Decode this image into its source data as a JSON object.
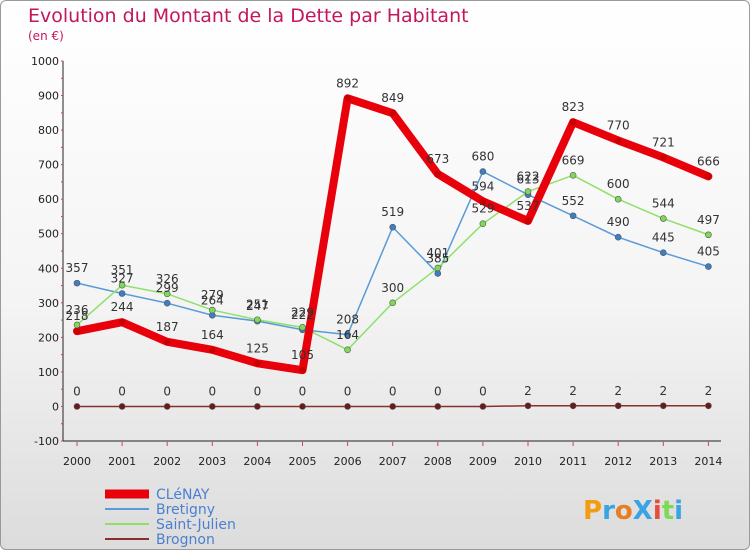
{
  "chart_data": {
    "type": "line",
    "title": "Evolution du Montant de la Dette par Habitant",
    "subtitle": "(en €)",
    "x": [
      "2000",
      "2001",
      "2002",
      "2003",
      "2004",
      "2005",
      "2006",
      "2007",
      "2008",
      "2009",
      "2010",
      "2011",
      "2012",
      "2013",
      "2014"
    ],
    "ylim": [
      -100,
      1000
    ],
    "yticks": [
      -100,
      0,
      100,
      200,
      300,
      400,
      500,
      600,
      700,
      800,
      900,
      1000
    ],
    "grid": false,
    "legend_position": "bottom-left",
    "series": [
      {
        "name": "CLéNAY",
        "color": "#e8000b",
        "marker_color": "#c80000",
        "values": [
          218,
          244,
          187,
          164,
          125,
          105,
          892,
          849,
          673,
          594,
          537,
          823,
          770,
          721,
          666
        ]
      },
      {
        "name": "Bretigny",
        "color": "#5b9bd5",
        "marker_color": "#3d7fc7",
        "values": [
          357,
          327,
          299,
          264,
          247,
          222,
          208,
          519,
          385,
          680,
          613,
          552,
          490,
          445,
          405
        ]
      },
      {
        "name": "Saint-Julien",
        "color": "#8fe06a",
        "marker_color": "#7ed957",
        "values": [
          236,
          351,
          326,
          279,
          251,
          229,
          164,
          300,
          401,
          529,
          622,
          669,
          600,
          544,
          497
        ]
      },
      {
        "name": "Brognon",
        "color": "#8b2e2e",
        "marker_color": "#6b1a1a",
        "values": [
          0,
          0,
          0,
          0,
          0,
          0,
          0,
          0,
          0,
          0,
          2,
          2,
          2,
          2,
          2
        ]
      }
    ]
  },
  "watermark": {
    "text": "ProXiti"
  }
}
